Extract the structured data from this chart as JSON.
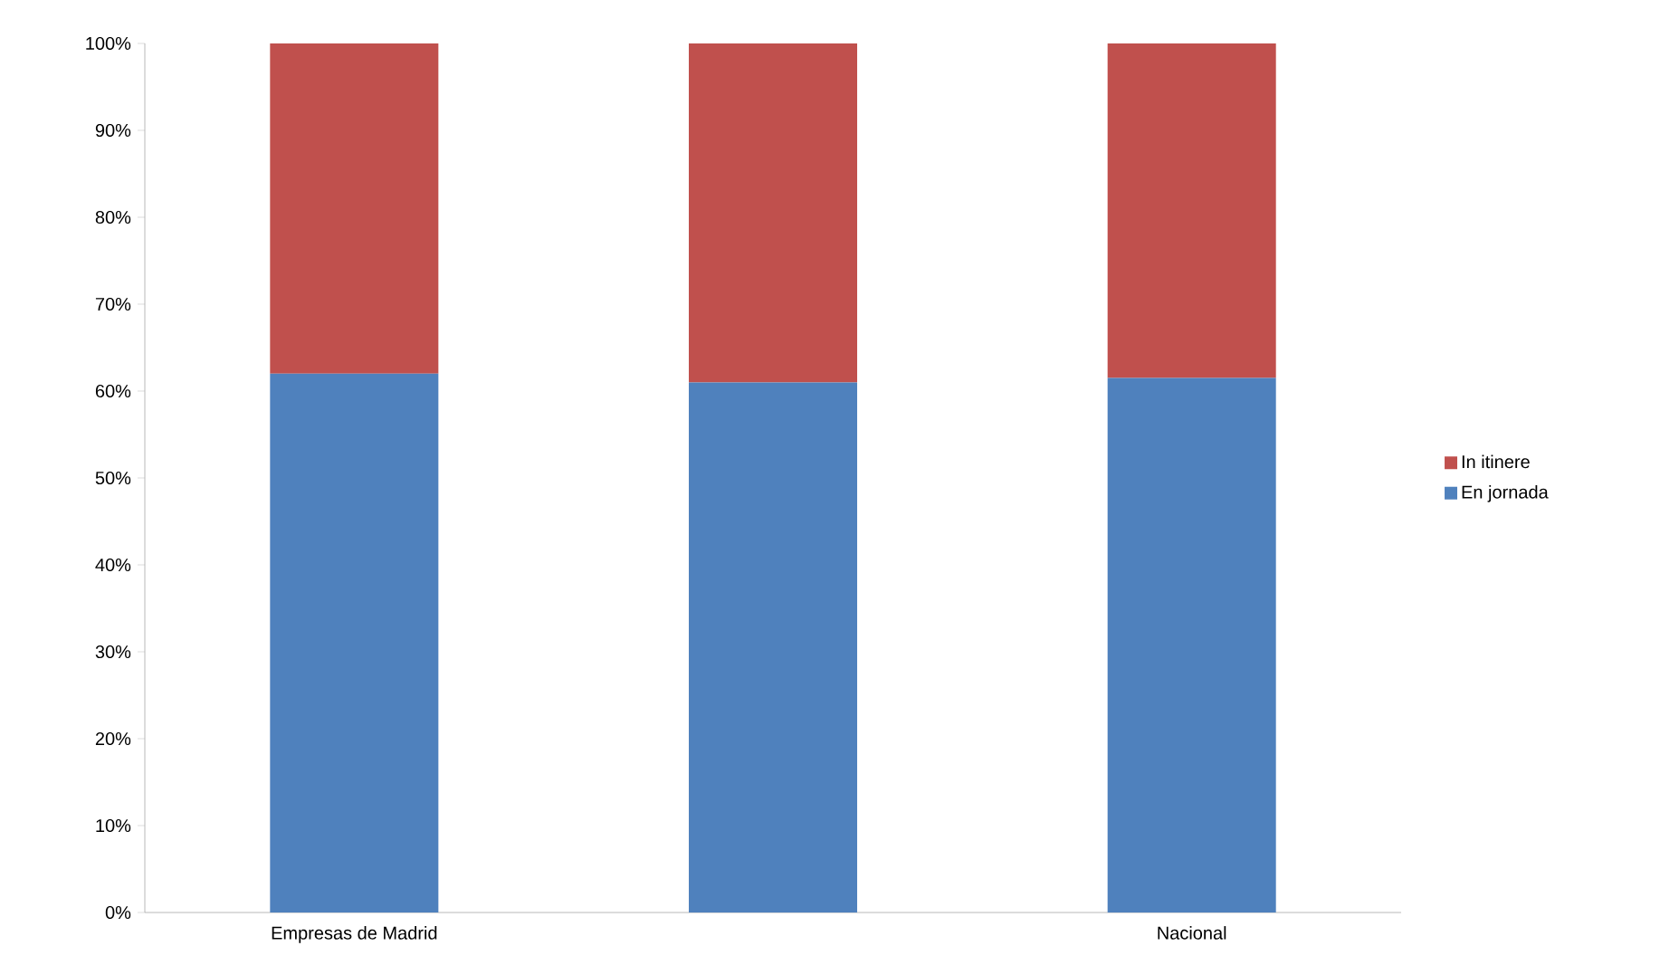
{
  "chart_data": {
    "type": "bar",
    "stacked": true,
    "categories": [
      "Empresas de Madrid",
      null,
      "Nacional"
    ],
    "series": [
      {
        "name": "En jornada",
        "color": "#4f81bd",
        "values": [
          62,
          61,
          61.5
        ]
      },
      {
        "name": "In itinere",
        "color": "#c0504d",
        "values": [
          38,
          39,
          38.5
        ]
      }
    ],
    "ylim": [
      0,
      100
    ],
    "yticks": [
      {
        "value": 0,
        "label": "0%"
      },
      {
        "value": 10,
        "label": "10%"
      },
      {
        "value": 20,
        "label": "20%"
      },
      {
        "value": 30,
        "label": "30%"
      },
      {
        "value": 40,
        "label": "40%"
      },
      {
        "value": 50,
        "label": "50%"
      },
      {
        "value": 60,
        "label": "60%"
      },
      {
        "value": 70,
        "label": "70%"
      },
      {
        "value": 80,
        "label": "80%"
      },
      {
        "value": 90,
        "label": "90%"
      },
      {
        "value": 100,
        "label": "100%"
      }
    ],
    "legend": "right"
  }
}
